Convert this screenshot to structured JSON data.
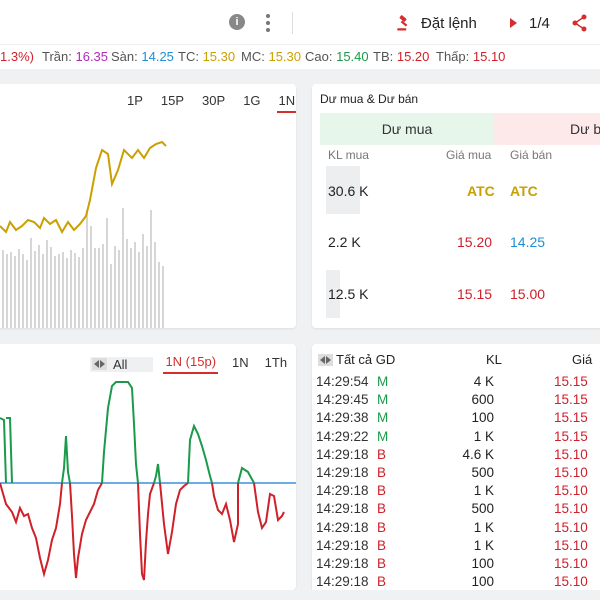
{
  "topbar": {
    "info_icon": "info-icon",
    "order_label": "Đặt lệnh",
    "pager": "1/4",
    "share_icon": "share-icon"
  },
  "pricebar": {
    "change_suffix": "1.3%)",
    "tran_label": "Trần:",
    "tran": "16.35",
    "san_label": "Sàn:",
    "san": "14.25",
    "tc_label": "TC:",
    "tc": "15.30",
    "mc_label": "MC:",
    "mc": "15.30",
    "cao_label": "Cao:",
    "cao": "15.40",
    "tb_label": "TB:",
    "tb": "15.20",
    "thap_label": "Thấp:",
    "thap": "15.10",
    "colors": {
      "ceiling": "#b12ab8",
      "floor": "#1e8fd6",
      "ref": "#c9a000",
      "up": "#1a9a4a",
      "down": "#d0202a"
    }
  },
  "price_chart": {
    "tabs": [
      "1P",
      "15P",
      "30P",
      "1G",
      "1N"
    ],
    "active_tab": "1N"
  },
  "orderbook": {
    "title": "Dư mua & Dư bán",
    "buy_header": "Dư mua",
    "sell_header": "Dư b",
    "col_kl_mua": "KL mua",
    "col_gia_mua": "Giá mua",
    "col_gia_ban": "Giá bán",
    "rows": [
      {
        "kl": "30.6 K",
        "gia_mua": "ATC",
        "gia_ban": "ATC"
      },
      {
        "kl": "2.2 K",
        "gia_mua": "15.20",
        "gia_ban": "14.25"
      },
      {
        "kl": "12.5 K",
        "gia_mua": "15.15",
        "gia_ban": "15.00"
      }
    ],
    "colors": {
      "buy_header_bg": "#e6f6ea",
      "sell_header_bg": "#fde8ea"
    }
  },
  "flow_chart": {
    "all_label": "All",
    "tabs": [
      "1N (15p)",
      "1N",
      "1Th"
    ],
    "active_tab": "1N (15p)"
  },
  "trades": {
    "filter_label": "Tất cả GD",
    "col_kl": "KL",
    "col_gia": "Giá",
    "rows": [
      {
        "time": "14:29:54",
        "side": "M",
        "kl": "4 K",
        "price": "15.15"
      },
      {
        "time": "14:29:45",
        "side": "M",
        "kl": "600",
        "price": "15.15"
      },
      {
        "time": "14:29:38",
        "side": "M",
        "kl": "100",
        "price": "15.15"
      },
      {
        "time": "14:29:22",
        "side": "M",
        "kl": "1 K",
        "price": "15.15"
      },
      {
        "time": "14:29:18",
        "side": "B",
        "kl": "4.6 K",
        "price": "15.10"
      },
      {
        "time": "14:29:18",
        "side": "B",
        "kl": "500",
        "price": "15.10"
      },
      {
        "time": "14:29:18",
        "side": "B",
        "kl": "1 K",
        "price": "15.10"
      },
      {
        "time": "14:29:18",
        "side": "B",
        "kl": "500",
        "price": "15.10"
      },
      {
        "time": "14:29:18",
        "side": "B",
        "kl": "1 K",
        "price": "15.10"
      },
      {
        "time": "14:29:18",
        "side": "B",
        "kl": "1 K",
        "price": "15.10"
      },
      {
        "time": "14:29:18",
        "side": "B",
        "kl": "100",
        "price": "15.10"
      },
      {
        "time": "14:29:18",
        "side": "B",
        "kl": "100",
        "price": "15.10"
      }
    ]
  }
}
